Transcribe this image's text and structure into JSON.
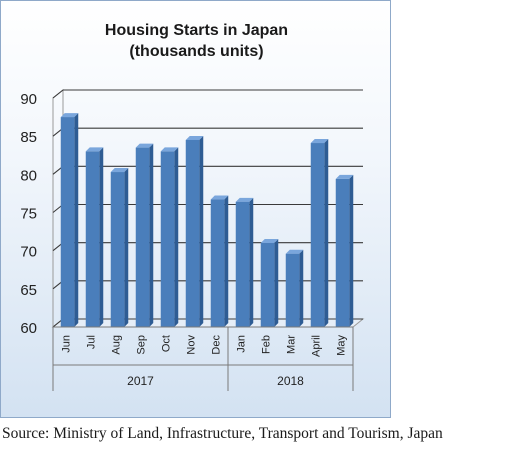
{
  "chart_data": {
    "type": "bar",
    "title": "Housing Starts in Japan",
    "subtitle": "(thousands units)",
    "categories": [
      "Jun",
      "Jul",
      "Aug",
      "Sep",
      "Oct",
      "Nov",
      "Dec",
      "Jan",
      "Feb",
      "Mar",
      "April",
      "May"
    ],
    "groups": [
      {
        "label": "2017",
        "count": 7
      },
      {
        "label": "2018",
        "count": 5
      }
    ],
    "values": [
      87.5,
      83,
      80.3,
      83.5,
      83,
      84.5,
      76.7,
      76.4,
      71,
      69.6,
      84.1,
      79.4
    ],
    "ylim": [
      60,
      90
    ],
    "yticks": [
      60,
      65,
      70,
      75,
      80,
      85,
      90
    ],
    "grid": true,
    "legend": "none",
    "colors": {
      "bar_front": "#4a7ebb",
      "bar_side": "#2e5c93",
      "bar_top": "#7aa6dc",
      "grid": "#3a3a3a"
    }
  },
  "source_note": "Source: Ministry of Land, Infrastructure, Transport and Tourism, Japan"
}
